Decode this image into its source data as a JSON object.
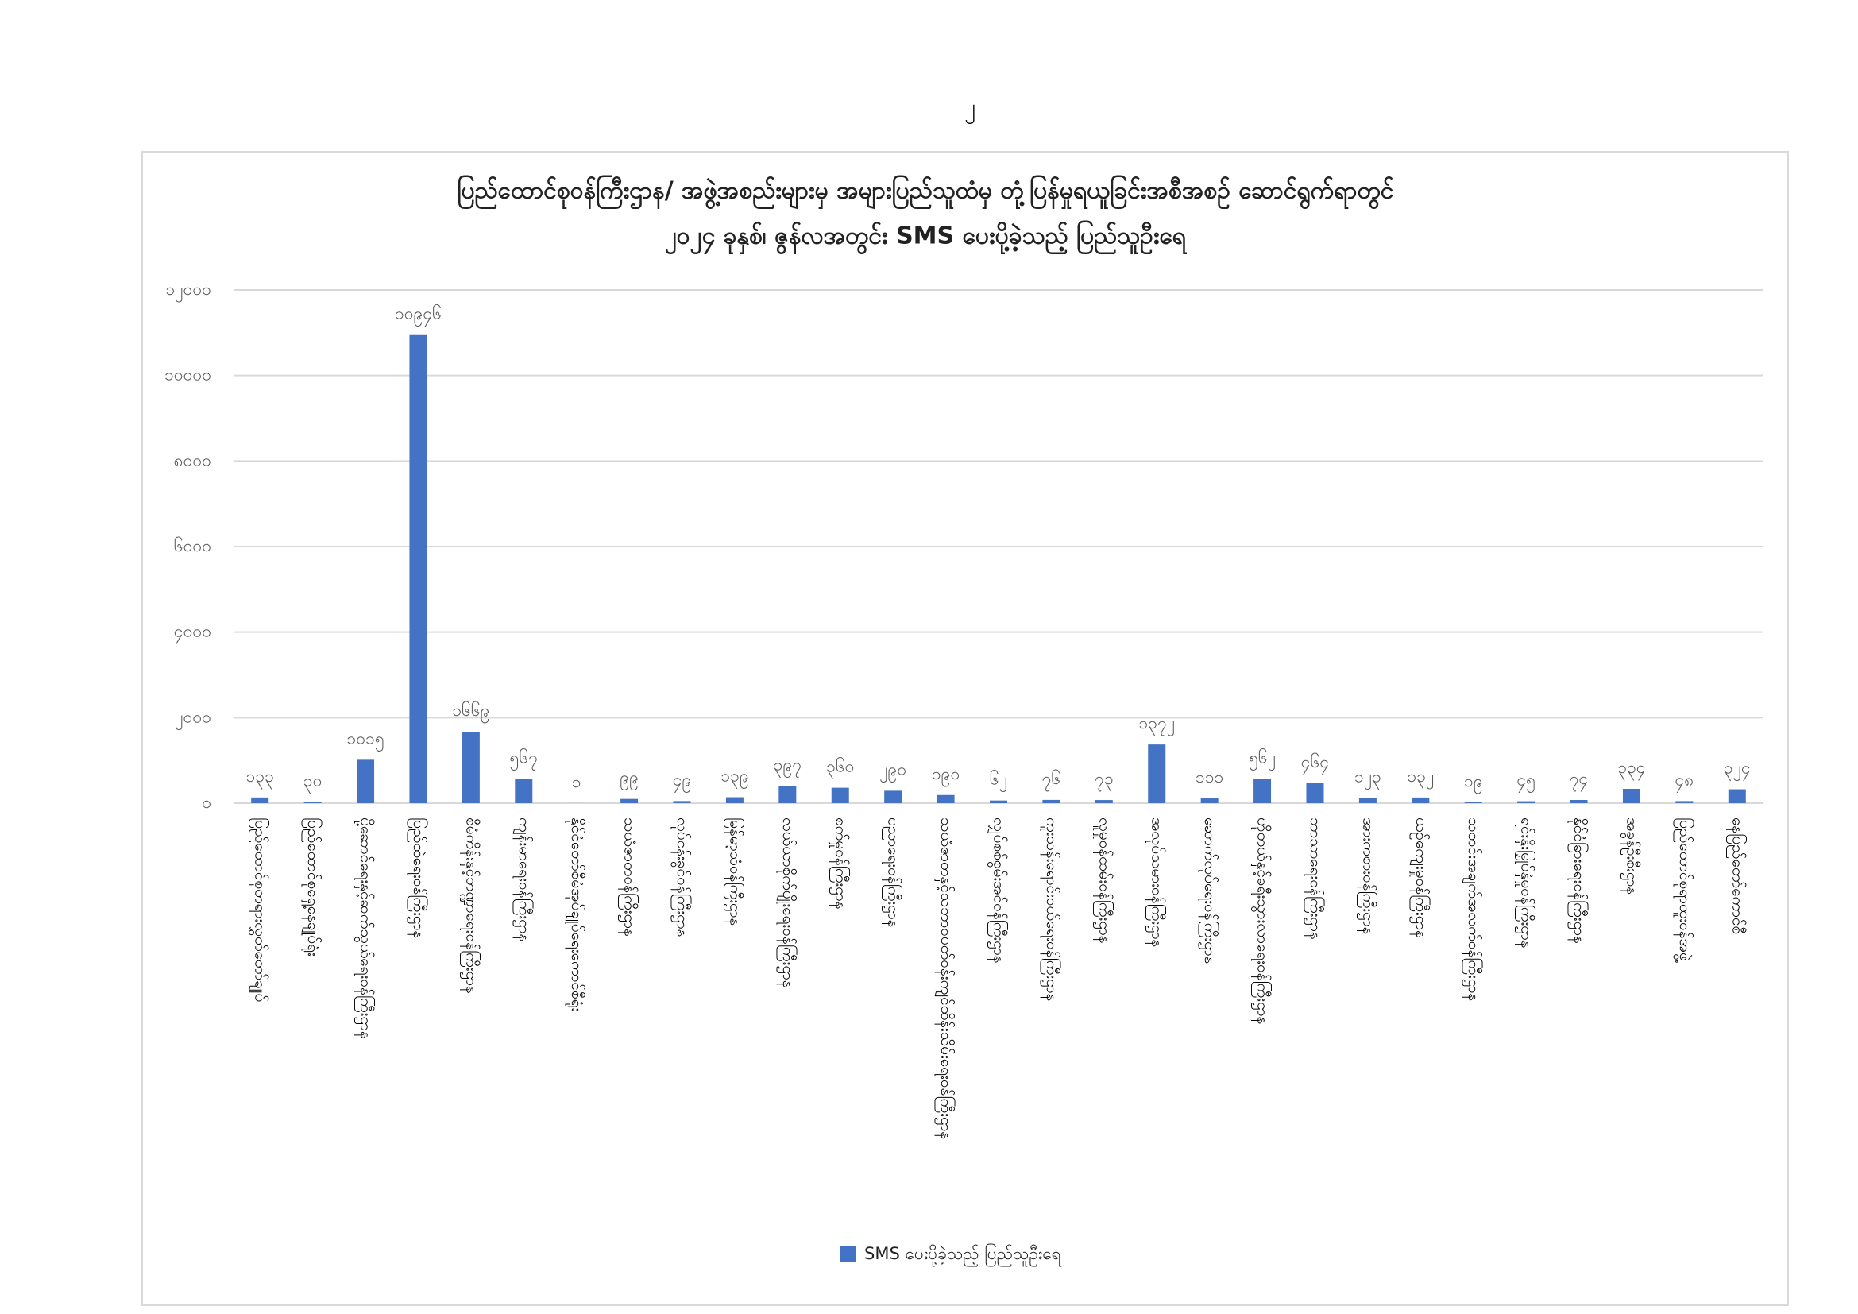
{
  "page_number": "၂",
  "chart_data": {
    "type": "bar",
    "title": "ပြည်ထောင်စုဝန်ကြီးဌာန/ အဖွဲ့အစည်းများမှ အများပြည်သူထံမှ တုံ့ပြန်မှုရယူခြင်းအစီအစဉ် ဆောင်ရွက်ရာတွင်",
    "subtitle": "၂၀၂၄ ခုနှစ်၊ ဇွန်လအတွင်း SMS ပေးပို့ခဲ့သည့် ပြည်သူဦးရေ",
    "categories": [
      "ပြည်ထောင်စုတရားလွှတ်တော်ချုပ်",
      "ပြည်ထောင်စုရှေ့နေချုပ်ရုံး",
      "ပို့ဆောင်ရေးနှင့်ဆက်သွယ်ရေးဝန်ကြီးဌာန",
      "ပြည်ထဲရေးဝန်ကြီးဌာန",
      "စီမံကိန်းနှင့်ဘဏ္ဍာရေးဝန်ကြီးဌာန",
      "ကျန်းမာရေးဝန်ကြီးဌာန",
      "နိုင်ငံတော်စီမံအုပ်ချုပ်ရေးကောင်စီရုံး",
      "သယံဇာတဝန်ကြီးဌာန",
      "လုပ်ငန်းခွင်ဝန်ကြီးဌာန",
      "မြန်မာ့သံဝန်ကြီးဌာန",
      "လယ်ယာစိုက်ပျိုးရေးဝန်ကြီးဌာန",
      "စက်မှုဝန်ကြီးဌာန",
      "ပညာရေးဝန်ကြီးဌာန",
      "သယံဇာတနှင့်သဘာဝပတ်ဝန်းကျင်ထိန်းသိမ်းရေးဝန်ကြီးဌာန",
      "လျှပ်စစ်စွမ်းအင်ဝန်ကြီးဌာန",
      "ကူးသန်းရောင်းဝယ်ရေးဝန်ကြီးဌာန",
      "လူမှုဝန်ထမ်းဝန်ကြီးဌာန",
      "အလုပ်သမားဝန်ကြီးဌာန",
      "ဆောက်လုပ်ရေးဝန်ကြီးဌာန",
      "ဟိုတယ်နှင့်ခရီးသွားလာရေးဝန်ကြီးဌာန",
      "ဘာသာရေးဝန်ကြီးဌာန",
      "အားကစားဝန်ကြီးဌာန",
      "ယဉ်ကျေးမှုဝန်ကြီးဌာန",
      "သတင်းအချက်အလက်ဝန်ကြီးဌာန",
      "ရင်းနှီးမြှုပ်နှံမှုဝန်ကြီးဌာန",
      "နိုင်ငံခြားရေးဝန်ကြီးဌာန",
      "အခွန်ဦးစီးဌာန",
      "ပြည်ထောင်စုရာထူးဝန်အဖွဲ့",
      "နေပြည်တော်ကောင်စီ"
    ],
    "series": [
      {
        "name": "SMS ပေးပို့ခဲ့သည့် ပြည်သူဦးရေ",
        "color": "#4472c4",
        "values": [
          133,
          30,
          1015,
          10946,
          1669,
          567,
          1,
          99,
          49,
          139,
          397,
          360,
          290,
          190,
          62,
          76,
          73,
          1372,
          111,
          562,
          464,
          123,
          132,
          19,
          45,
          74,
          334,
          48,
          324
        ],
        "value_labels": [
          "၁၃၃",
          "၃၀",
          "၁၀၁၅",
          "၁၀၉၄၆",
          "၁၆၆၉",
          "၅၆၇",
          "၁",
          "၉၉",
          "၄၉",
          "၁၃၉",
          "၃၉၇",
          "၃၆၀",
          "၂၉၀",
          "၁၉၀",
          "၆၂",
          "၇၆",
          "၇၃",
          "၁၃၇၂",
          "၁၁၁",
          "၅၆၂",
          "၄၆၄",
          "၁၂၃",
          "၁၃၂",
          "၁၉",
          "၄၅",
          "၇၄",
          "၃၃၄",
          "၄၈",
          "၃၂၄"
        ]
      }
    ],
    "ylim": [
      0,
      12000
    ],
    "yticks": [
      {
        "value": 0,
        "label": "၀"
      },
      {
        "value": 2000,
        "label": "၂၀၀၀"
      },
      {
        "value": 4000,
        "label": "၄၀၀၀"
      },
      {
        "value": 6000,
        "label": "၆၀၀၀"
      },
      {
        "value": 8000,
        "label": "၈၀၀၀"
      },
      {
        "value": 10000,
        "label": "၁၀၀၀၀"
      },
      {
        "value": 12000,
        "label": "၁၂၀၀၀"
      }
    ],
    "grid": true,
    "legend": "bottom"
  }
}
